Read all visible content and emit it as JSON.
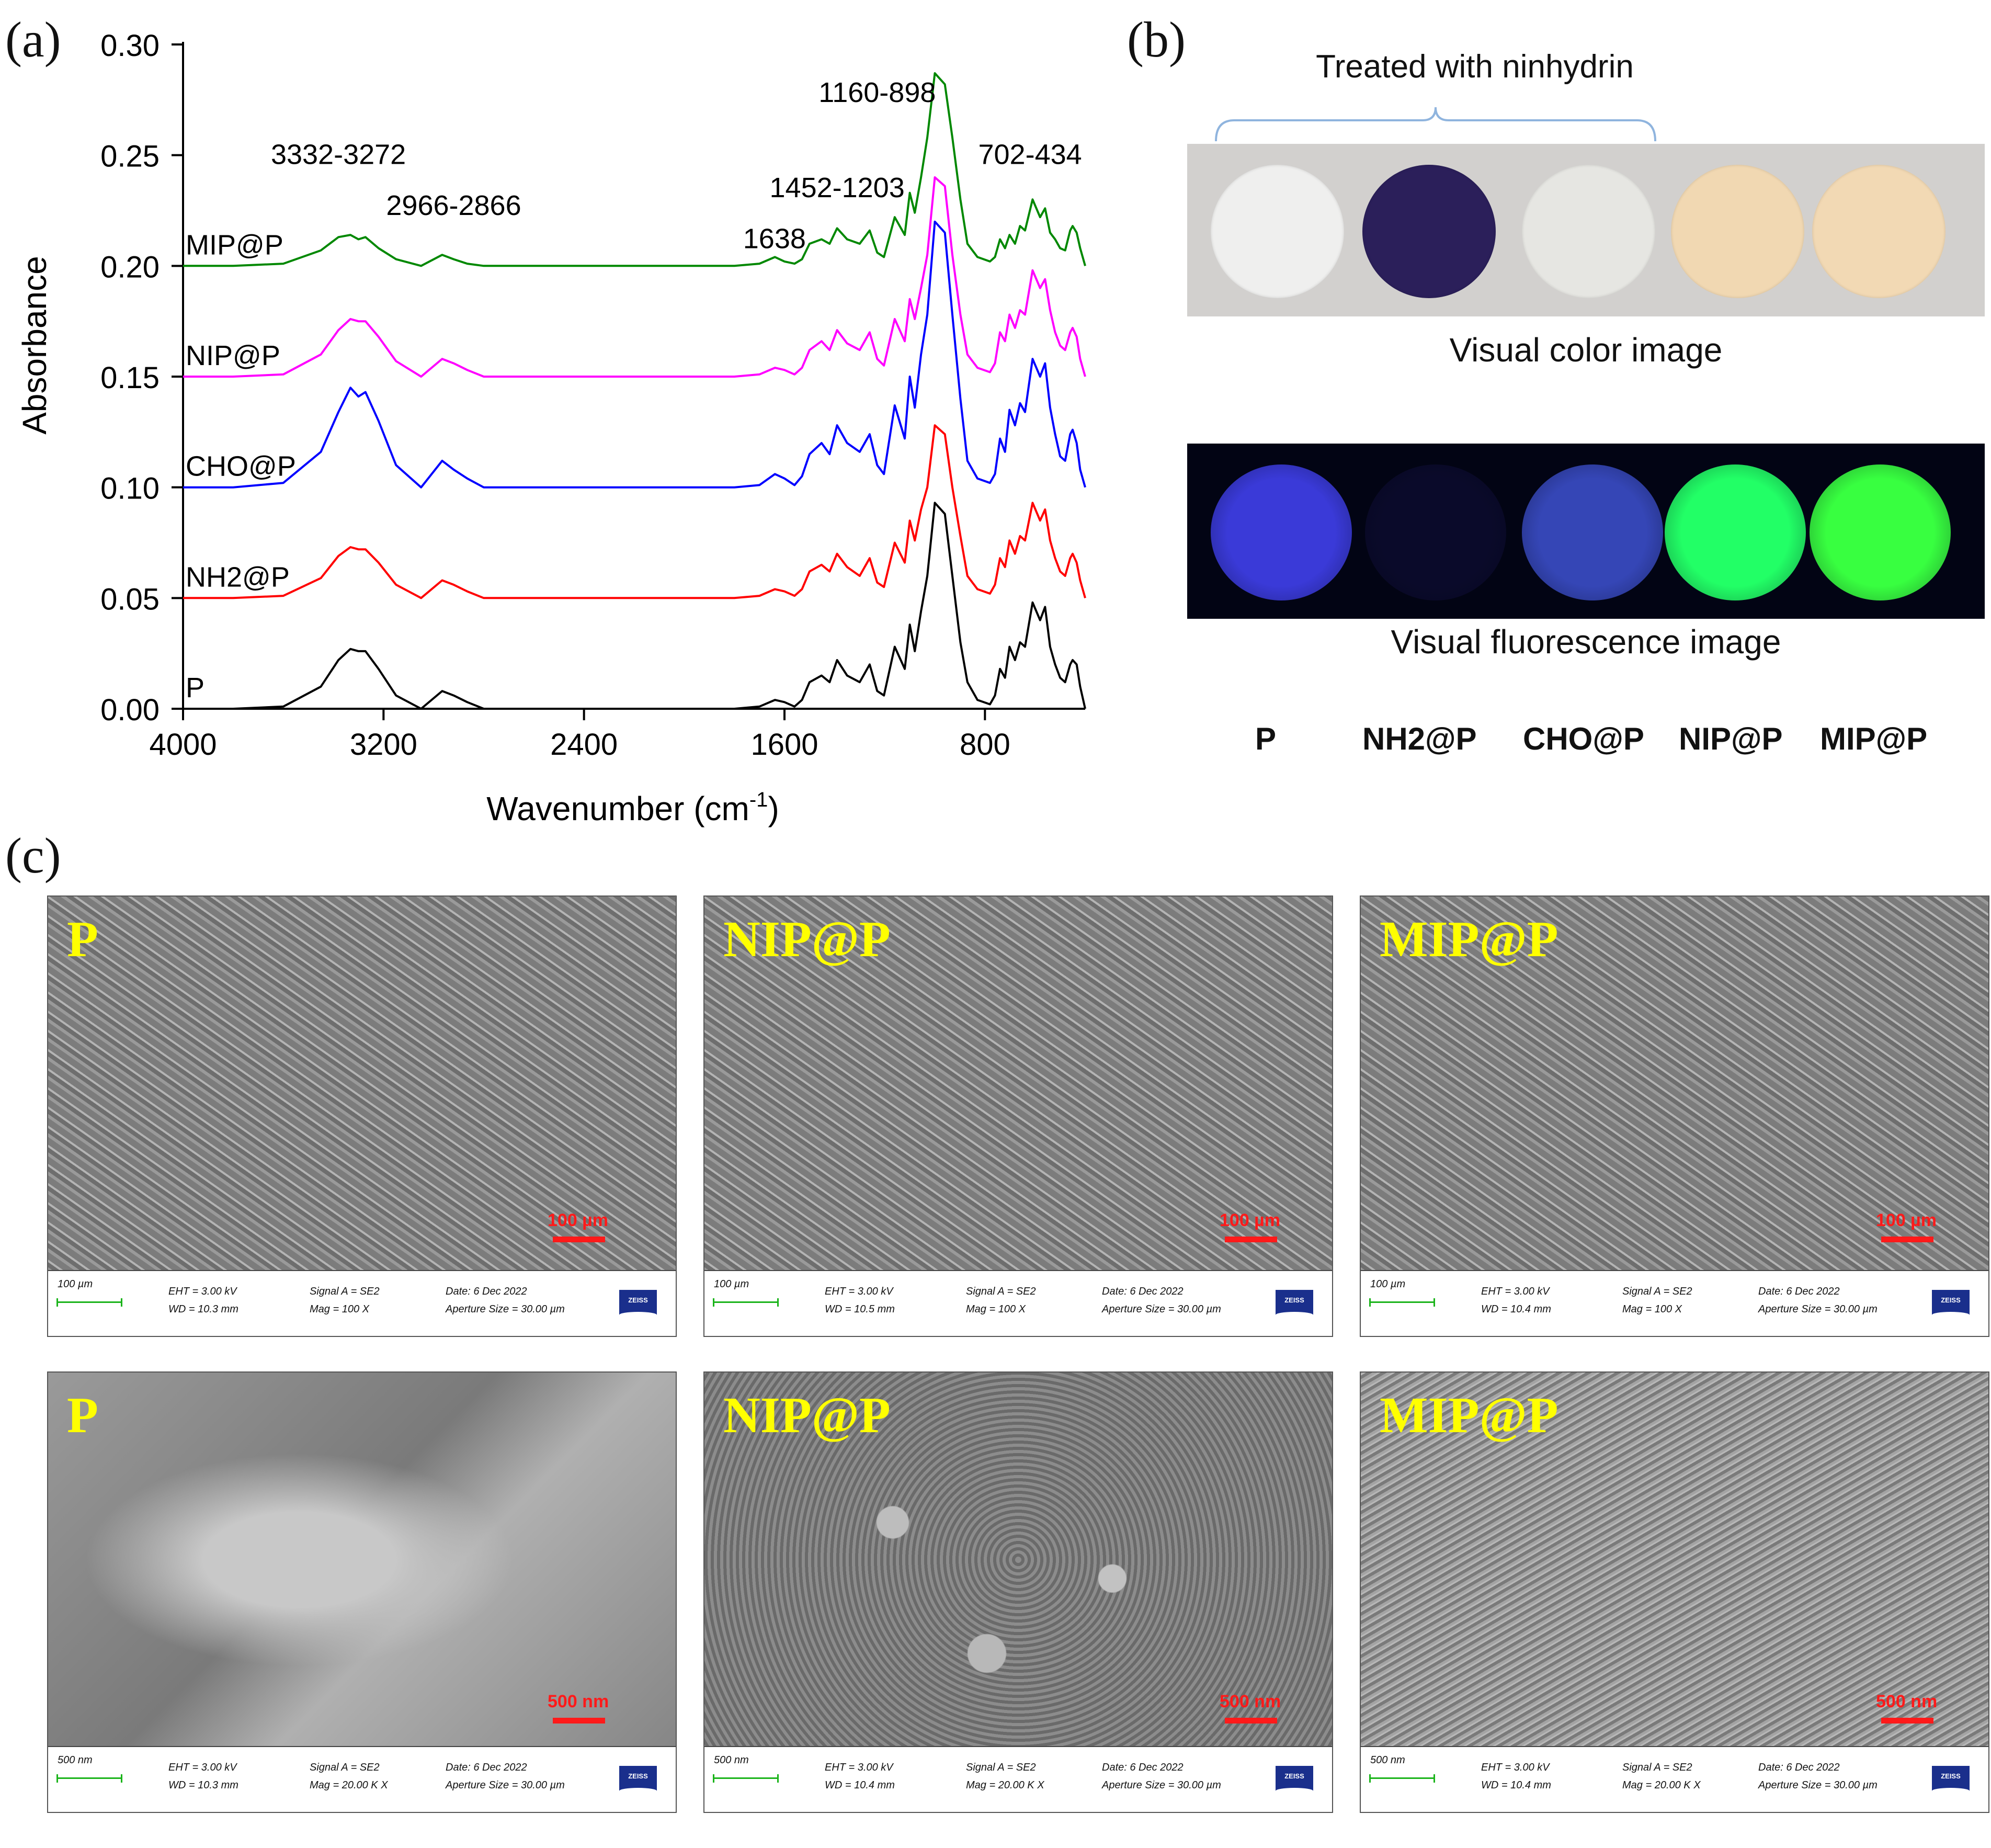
{
  "panels": {
    "a": "(a)",
    "b": "(b)",
    "c": "(c)"
  },
  "chart_data": {
    "type": "line",
    "xlabel": "Wavenumber (cm",
    "xlabel_sup": "-1",
    "xlabel_tail": ")",
    "ylabel": "Absorbance",
    "xlim": [
      4000,
      400
    ],
    "ylim": [
      0.0,
      0.3
    ],
    "x_reversed": true,
    "x_ticks": [
      4000,
      3200,
      2400,
      1600,
      800
    ],
    "x_tick_labels": [
      "4000",
      "3200",
      "2400",
      "1600",
      "800"
    ],
    "y_ticks": [
      0.0,
      0.05,
      0.1,
      0.15,
      0.2,
      0.25,
      0.3
    ],
    "y_tick_labels": [
      "0.00",
      "0.05",
      "0.10",
      "0.15",
      "0.20",
      "0.25",
      "0.30"
    ],
    "grid": false,
    "legend": "labels next to each curve",
    "x": [
      4000,
      3800,
      3600,
      3450,
      3380,
      3332,
      3300,
      3272,
      3220,
      3150,
      3050,
      2966,
      2920,
      2866,
      2800,
      2600,
      2400,
      2200,
      2000,
      1800,
      1700,
      1638,
      1600,
      1560,
      1530,
      1500,
      1452,
      1420,
      1390,
      1350,
      1300,
      1260,
      1230,
      1203,
      1160,
      1120,
      1100,
      1080,
      1055,
      1030,
      1000,
      960,
      930,
      898,
      870,
      830,
      780,
      760,
      740,
      720,
      702,
      680,
      660,
      640,
      610,
      580,
      560,
      540,
      520,
      500,
      480,
      460,
      450,
      434,
      420,
      400
    ],
    "series": [
      {
        "name": "P",
        "color": "#000000",
        "values": [
          0.0,
          0.0,
          0.001,
          0.01,
          0.022,
          0.027,
          0.026,
          0.026,
          0.018,
          0.006,
          0.0,
          0.008,
          0.006,
          0.003,
          0.0,
          0.0,
          0.0,
          0.0,
          0.0,
          0.0,
          0.001,
          0.004,
          0.003,
          0.001,
          0.004,
          0.012,
          0.015,
          0.012,
          0.022,
          0.015,
          0.012,
          0.02,
          0.008,
          0.006,
          0.028,
          0.018,
          0.038,
          0.026,
          0.044,
          0.06,
          0.093,
          0.088,
          0.06,
          0.03,
          0.012,
          0.004,
          0.002,
          0.006,
          0.018,
          0.014,
          0.028,
          0.022,
          0.03,
          0.028,
          0.048,
          0.04,
          0.046,
          0.028,
          0.02,
          0.014,
          0.012,
          0.02,
          0.022,
          0.02,
          0.01,
          0.0
        ]
      },
      {
        "name": "NH2@P",
        "color": "#ff0000",
        "values": [
          0.05,
          0.05,
          0.051,
          0.059,
          0.069,
          0.073,
          0.072,
          0.072,
          0.066,
          0.056,
          0.05,
          0.058,
          0.056,
          0.053,
          0.05,
          0.05,
          0.05,
          0.05,
          0.05,
          0.05,
          0.051,
          0.054,
          0.053,
          0.051,
          0.054,
          0.062,
          0.065,
          0.062,
          0.07,
          0.064,
          0.06,
          0.068,
          0.057,
          0.055,
          0.075,
          0.066,
          0.085,
          0.076,
          0.09,
          0.1,
          0.128,
          0.124,
          0.1,
          0.078,
          0.06,
          0.054,
          0.052,
          0.056,
          0.068,
          0.064,
          0.076,
          0.07,
          0.078,
          0.076,
          0.093,
          0.085,
          0.09,
          0.076,
          0.068,
          0.062,
          0.06,
          0.068,
          0.07,
          0.066,
          0.058,
          0.05
        ]
      },
      {
        "name": "CHO@P",
        "color": "#0000ff",
        "values": [
          0.1,
          0.1,
          0.102,
          0.116,
          0.134,
          0.145,
          0.141,
          0.143,
          0.13,
          0.11,
          0.1,
          0.112,
          0.108,
          0.104,
          0.1,
          0.1,
          0.1,
          0.1,
          0.1,
          0.1,
          0.101,
          0.106,
          0.104,
          0.101,
          0.105,
          0.115,
          0.12,
          0.115,
          0.128,
          0.12,
          0.116,
          0.124,
          0.11,
          0.106,
          0.137,
          0.122,
          0.15,
          0.136,
          0.16,
          0.178,
          0.22,
          0.215,
          0.178,
          0.14,
          0.112,
          0.104,
          0.102,
          0.106,
          0.122,
          0.116,
          0.135,
          0.128,
          0.138,
          0.134,
          0.158,
          0.15,
          0.156,
          0.136,
          0.124,
          0.114,
          0.112,
          0.124,
          0.126,
          0.12,
          0.108,
          0.1
        ]
      },
      {
        "name": "NIP@P",
        "color": "#ff00ff",
        "values": [
          0.15,
          0.15,
          0.151,
          0.16,
          0.171,
          0.176,
          0.175,
          0.175,
          0.168,
          0.157,
          0.15,
          0.158,
          0.156,
          0.153,
          0.15,
          0.15,
          0.15,
          0.15,
          0.15,
          0.15,
          0.151,
          0.154,
          0.153,
          0.151,
          0.154,
          0.162,
          0.166,
          0.162,
          0.171,
          0.165,
          0.162,
          0.17,
          0.158,
          0.155,
          0.176,
          0.166,
          0.185,
          0.176,
          0.19,
          0.205,
          0.24,
          0.236,
          0.205,
          0.178,
          0.16,
          0.154,
          0.152,
          0.156,
          0.17,
          0.166,
          0.178,
          0.172,
          0.18,
          0.178,
          0.198,
          0.19,
          0.194,
          0.18,
          0.17,
          0.164,
          0.162,
          0.17,
          0.172,
          0.168,
          0.158,
          0.15
        ]
      },
      {
        "name": "MIP@P",
        "color": "#008800",
        "values": [
          0.2,
          0.2,
          0.201,
          0.207,
          0.213,
          0.214,
          0.212,
          0.213,
          0.208,
          0.203,
          0.2,
          0.205,
          0.203,
          0.201,
          0.2,
          0.2,
          0.2,
          0.2,
          0.2,
          0.2,
          0.201,
          0.204,
          0.202,
          0.201,
          0.203,
          0.21,
          0.212,
          0.21,
          0.217,
          0.212,
          0.21,
          0.216,
          0.206,
          0.204,
          0.222,
          0.214,
          0.233,
          0.224,
          0.24,
          0.258,
          0.287,
          0.282,
          0.258,
          0.23,
          0.21,
          0.204,
          0.202,
          0.204,
          0.212,
          0.208,
          0.214,
          0.21,
          0.218,
          0.216,
          0.23,
          0.222,
          0.226,
          0.215,
          0.212,
          0.208,
          0.207,
          0.216,
          0.218,
          0.215,
          0.208,
          0.2
        ]
      }
    ],
    "annotations": [
      {
        "text": "3332-3272",
        "x": 3380,
        "y": 0.246
      },
      {
        "text": "2966-2866",
        "x": 2920,
        "y": 0.223
      },
      {
        "text": "1638",
        "x": 1640,
        "y": 0.208
      },
      {
        "text": "1452-1203",
        "x": 1390,
        "y": 0.231
      },
      {
        "text": "1160-898",
        "x": 1230,
        "y": 0.274
      },
      {
        "text": "702-434",
        "x": 620,
        "y": 0.246
      }
    ]
  },
  "panel_b": {
    "bracket_label": "Treated with ninhydrin",
    "color_image_label": "Visual color image",
    "fluorescence_image_label": "Visual fluorescence image",
    "sample_labels": [
      "P",
      "NH2@P",
      "CHO@P",
      "NIP@P",
      "MIP@P"
    ],
    "color_discs": [
      "#efefee",
      "#2b1f5a",
      "#e6e6e2",
      "#f1d8b2",
      "#f2d9b4"
    ],
    "fluor_discs": [
      "#3a3ad8",
      "#0a0a2a",
      "#3546b6",
      "#22ff66",
      "#38ff40"
    ]
  },
  "sem": {
    "top": [
      {
        "name": "P",
        "scale": "100 µm",
        "info_scale": "100 µm",
        "eht": "EHT =  3.00 kV",
        "wd": "WD = 10.3 mm",
        "signal": "Signal A = SE2",
        "mag": "Mag =  100 X",
        "date": "Date: 6 Dec 2022",
        "aperture": "Aperture Size = 30.00 µm"
      },
      {
        "name": "NIP@P",
        "scale": "100 µm",
        "info_scale": "100 µm",
        "eht": "EHT =  3.00 kV",
        "wd": "WD = 10.5 mm",
        "signal": "Signal A = SE2",
        "mag": "Mag =  100 X",
        "date": "Date: 6 Dec 2022",
        "aperture": "Aperture Size = 30.00 µm"
      },
      {
        "name": "MIP@P",
        "scale": "100 µm",
        "info_scale": "100 µm",
        "eht": "EHT =  3.00 kV",
        "wd": "WD = 10.4 mm",
        "signal": "Signal A = SE2",
        "mag": "Mag =  100 X",
        "date": "Date: 6 Dec 2022",
        "aperture": "Aperture Size = 30.00 µm"
      }
    ],
    "bottom": [
      {
        "name": "P",
        "scale": "500 nm",
        "info_scale": "500 nm",
        "eht": "EHT =  3.00 kV",
        "wd": "WD = 10.3 mm",
        "signal": "Signal A = SE2",
        "mag": "Mag =  20.00 K X",
        "date": "Date: 6 Dec 2022",
        "aperture": "Aperture Size = 30.00 µm"
      },
      {
        "name": "NIP@P",
        "scale": "500 nm",
        "info_scale": "500 nm",
        "eht": "EHT =  3.00 kV",
        "wd": "WD = 10.4 mm",
        "signal": "Signal A = SE2",
        "mag": "Mag =  20.00 K X",
        "date": "Date: 6 Dec 2022",
        "aperture": "Aperture Size = 30.00 µm"
      },
      {
        "name": "MIP@P",
        "scale": "500 nm",
        "info_scale": "500 nm",
        "eht": "EHT =  3.00 kV",
        "wd": "WD = 10.4 mm",
        "signal": "Signal A = SE2",
        "mag": "Mag =  20.00 K X",
        "date": "Date: 6 Dec 2022",
        "aperture": "Aperture Size = 30.00 µm"
      }
    ],
    "logo": "ZEISS"
  }
}
